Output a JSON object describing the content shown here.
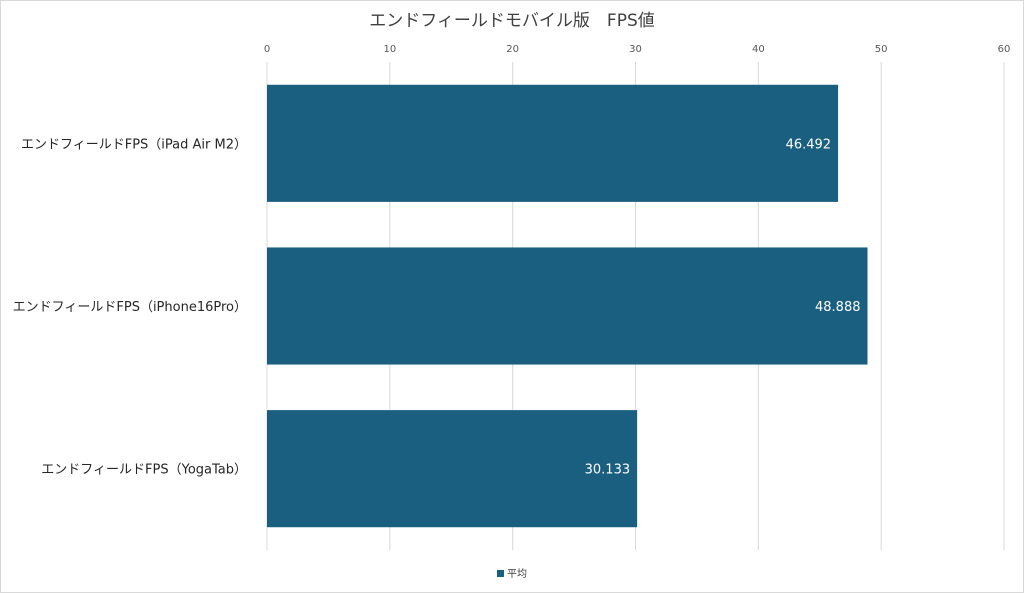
{
  "chart_data": {
    "type": "bar",
    "orientation": "horizontal",
    "title": "エンドフィールドモバイル版　FPS値",
    "categories": [
      "エンドフィールドFPS（iPad Air M2）",
      "エンドフィールドFPS（iPhone16Pro）",
      "エンドフィールドFPS（YogaTab）"
    ],
    "series": [
      {
        "name": "平均",
        "values": [
          46.492,
          48.888,
          30.133
        ],
        "labels": [
          "46.492",
          "48.888",
          "30.133"
        ]
      }
    ],
    "xlim": [
      0,
      60
    ],
    "xticks": [
      "0",
      "10",
      "20",
      "30",
      "40",
      "50",
      "60"
    ],
    "axis_position": "top",
    "grid": true,
    "legend_position": "bottom",
    "colors": {
      "bar": "#1a5f80",
      "grid": "#d9d9d9"
    }
  }
}
